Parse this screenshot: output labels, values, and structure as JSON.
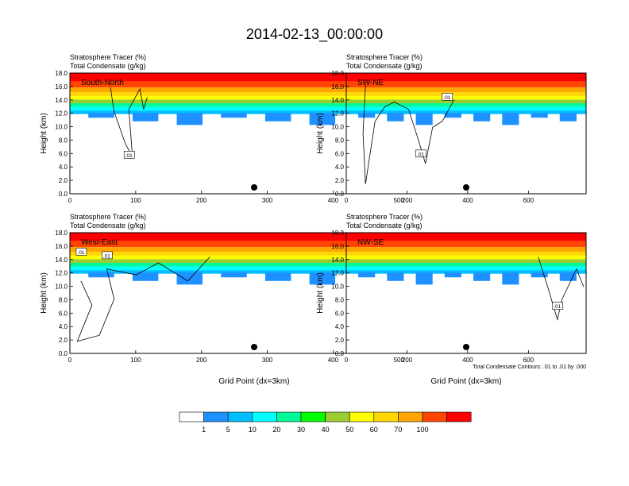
{
  "title": "2014-02-13_00:00:00",
  "panel_header_line1": "Stratosphere Tracer   (%)",
  "panel_header_line2": "Total Condensate   (g/kg)",
  "contour_note": "Total Condensate Contours: .01 to .01 by .000",
  "colors": [
    "#ffffff",
    "#1e90ff",
    "#00bfff",
    "#00ffff",
    "#00fa9a",
    "#00ff00",
    "#9acd32",
    "#ffff00",
    "#ffd700",
    "#ffa500",
    "#ff4500",
    "#ff0000"
  ],
  "colorbar": {
    "labels": [
      "1",
      "5",
      "10",
      "20",
      "30",
      "40",
      "50",
      "60",
      "70",
      "100"
    ]
  },
  "chart_data": [
    {
      "type": "heatmap",
      "panel": "South-North",
      "ylabel": "Height (km)",
      "xlabel": "",
      "xlim": [
        0,
        560
      ],
      "ylim": [
        0,
        18
      ],
      "xticks": [
        "0",
        "100",
        "200",
        "300",
        "400",
        "500"
      ],
      "yticks": [
        "0.0",
        "2.0",
        "4.0",
        "6.0",
        "8.0",
        "10.0",
        "12.0",
        "14.0",
        "16.0",
        "18.0"
      ],
      "contour_labels": [
        ".01"
      ],
      "marker_x": 280
    },
    {
      "type": "heatmap",
      "panel": "SW-NE",
      "ylabel": "Height (km)",
      "xlabel": "",
      "xlim": [
        0,
        790
      ],
      "ylim": [
        0,
        18
      ],
      "xticks": [
        "0",
        "200",
        "400",
        "600"
      ],
      "yticks": [
        "0.0",
        "2.0",
        "4.0",
        "6.0",
        "8.0",
        "10.0",
        "12.0",
        "14.0",
        "16.0",
        "18.0"
      ],
      "contour_labels": [
        ".01",
        ".01"
      ],
      "marker_x": 395
    },
    {
      "type": "heatmap",
      "panel": "West-East",
      "ylabel": "Height (km)",
      "xlabel": "Grid Point (dx=3km)",
      "xlim": [
        0,
        560
      ],
      "ylim": [
        0,
        18
      ],
      "xticks": [
        "0",
        "100",
        "200",
        "300",
        "400",
        "500"
      ],
      "yticks": [
        "0.0",
        "2.0",
        "4.0",
        "6.0",
        "8.0",
        "10.0",
        "12.0",
        "14.0",
        "16.0",
        "18.0"
      ],
      "contour_labels": [
        ".01",
        ".01"
      ],
      "marker_x": 280
    },
    {
      "type": "heatmap",
      "panel": "NW-SE",
      "ylabel": "Height (km)",
      "xlabel": "Grid Point (dx=3km)",
      "xlim": [
        0,
        790
      ],
      "ylim": [
        0,
        18
      ],
      "xticks": [
        "0",
        "200",
        "400",
        "600"
      ],
      "yticks": [
        "0.0",
        "2.0",
        "4.0",
        "6.0",
        "8.0",
        "10.0",
        "12.0",
        "14.0",
        "16.0",
        "18.0"
      ],
      "contour_labels": [
        ".01"
      ],
      "marker_x": 395
    }
  ]
}
